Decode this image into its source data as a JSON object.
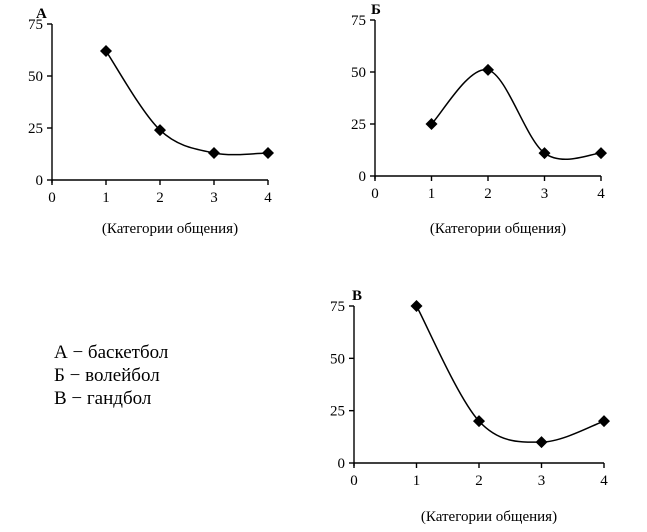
{
  "chart_data": [
    {
      "type": "line",
      "title": "А",
      "xlabel": "(Категории общения)",
      "ylabel": "",
      "x": [
        1,
        2,
        3,
        4
      ],
      "values": [
        62,
        24,
        13,
        13
      ],
      "xlim": [
        0,
        4
      ],
      "ylim": [
        0,
        75
      ],
      "xticks": [
        "0",
        "1",
        "2",
        "3",
        "4"
      ],
      "yticks": [
        "0",
        "25",
        "50",
        "75"
      ],
      "grid": false,
      "marker": "diamond",
      "line_style": "smooth"
    },
    {
      "type": "line",
      "title": "Б",
      "xlabel": "(Категории общения)",
      "ylabel": "",
      "x": [
        1,
        2,
        3,
        4
      ],
      "values": [
        25,
        51,
        11,
        11
      ],
      "xlim": [
        0,
        4
      ],
      "ylim": [
        0,
        75
      ],
      "xticks": [
        "0",
        "1",
        "2",
        "3",
        "4"
      ],
      "yticks": [
        "0",
        "25",
        "50",
        "75"
      ],
      "grid": false,
      "marker": "diamond",
      "line_style": "smooth"
    },
    {
      "type": "line",
      "title": "В",
      "xlabel": "(Категории общения)",
      "ylabel": "",
      "x": [
        1,
        2,
        3,
        4
      ],
      "values": [
        75,
        20,
        10,
        20
      ],
      "xlim": [
        0,
        4
      ],
      "ylim": [
        0,
        75
      ],
      "xticks": [
        "0",
        "1",
        "2",
        "3",
        "4"
      ],
      "yticks": [
        "0",
        "25",
        "50",
        "75"
      ],
      "grid": false,
      "marker": "diamond",
      "line_style": "smooth"
    }
  ],
  "legend": {
    "items": [
      "А − баскетбол",
      "Б − волейбол",
      "В − гандбол"
    ]
  },
  "colors": {
    "ink": "#000000",
    "background": "#ffffff"
  }
}
